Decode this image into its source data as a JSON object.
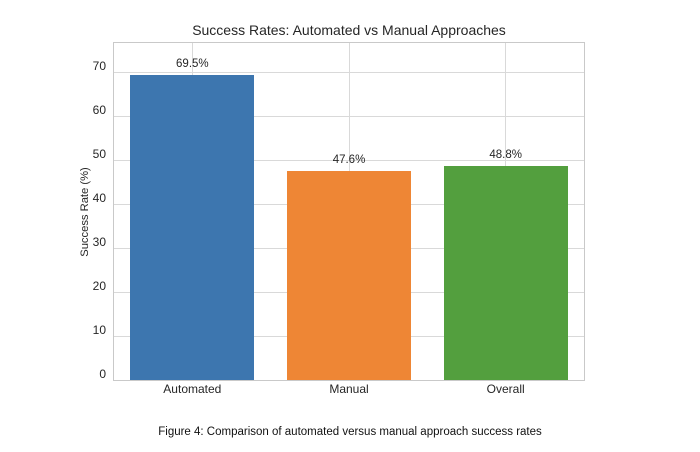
{
  "chart_data": {
    "type": "bar",
    "title": "Success Rates: Automated vs Manual Approaches",
    "categories": [
      "Automated",
      "Manual",
      "Overall"
    ],
    "values": [
      69.5,
      47.6,
      48.8
    ],
    "value_labels": [
      "69.5%",
      "47.6%",
      "48.8%"
    ],
    "bar_colors": [
      "#3d76af",
      "#ee8635",
      "#539f3e"
    ],
    "xlabel": "",
    "ylabel": "Success Rate (%)",
    "ylim": [
      0,
      76.7
    ],
    "yticks": [
      0,
      10,
      20,
      30,
      40,
      50,
      60,
      70
    ],
    "grid": true,
    "grid_color": "#d9d9d9",
    "axes_edge_color": "#c9c9c9",
    "legend": "none"
  },
  "caption": "Figure 4: Comparison of automated versus manual approach success rates"
}
